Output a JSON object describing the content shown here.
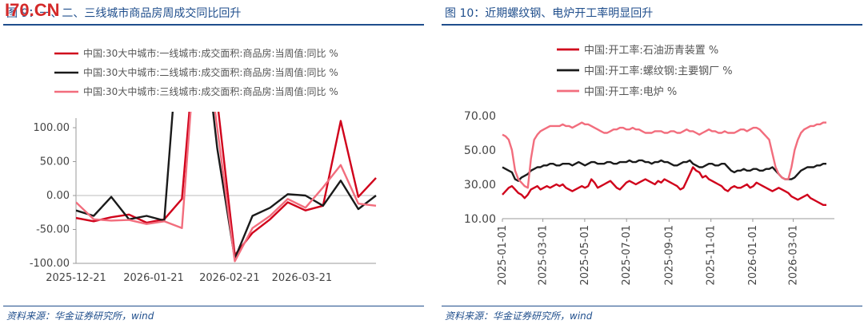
{
  "watermark": "I70.CN",
  "left": {
    "title": "图 9：一、二、三线城市商品房周成交同比回升",
    "source": "资料来源：华金证券研究所，wind",
    "chart_data": {
      "type": "line",
      "x": [
        "2025-12-21",
        "2025-12-28",
        "2026-01-04",
        "2026-01-11",
        "2026-01-18",
        "2026-01-25",
        "2026-02-01",
        "2026-02-08",
        "2026-02-15",
        "2026-02-22",
        "2026-03-01",
        "2026-03-08",
        "2026-03-15",
        "2026-03-22",
        "2026-03-29",
        "2026-04-05",
        "2026-04-12",
        "2026-04-19"
      ],
      "xticks": [
        "2025-12-21",
        "2026-01-21",
        "2026-02-21",
        "2026-03-21"
      ],
      "ylim": [
        -100,
        100
      ],
      "yticks": [
        "100.00",
        "50.00",
        "0.00",
        "-50.00",
        "-100.00"
      ],
      "ytick_values": [
        100,
        50,
        0,
        -50,
        -100
      ],
      "series": [
        {
          "name": "中国:30大中城市:一线城市:成交面积:商品房:当周值:同比 %",
          "color": "#d0021b",
          "values": [
            -33,
            -38,
            -32,
            -28,
            -40,
            -35,
            -5,
            300,
            140,
            -88,
            -55,
            -35,
            -10,
            -22,
            -15,
            110,
            -2,
            26
          ]
        },
        {
          "name": "中国:30大中城市:二线城市:成交面积:商品房:当周值:同比 %",
          "color": "#1a1a1a",
          "values": [
            -22,
            -30,
            -2,
            -35,
            -30,
            -37,
            300,
            300,
            70,
            -93,
            -30,
            -18,
            2,
            0,
            -15,
            22,
            -20,
            0
          ]
        },
        {
          "name": "中国:30大中城市:三线城市:成交面积:商品房:当周值:同比 %",
          "color": "#f26d7d",
          "values": [
            -10,
            -35,
            -37,
            -36,
            -42,
            -38,
            -48,
            300,
            100,
            -97,
            -48,
            -30,
            -5,
            -18,
            12,
            45,
            -12,
            -15
          ]
        }
      ]
    }
  },
  "right": {
    "title": "图 10：近期螺纹钢、电炉开工率明显回升",
    "source": "资料来源：华金证券研究所，wind",
    "chart_data": {
      "type": "line",
      "x_start": "2025-01-01",
      "x_end": "2026-04-30",
      "xticks": [
        "2025-01-01",
        "2025-03-01",
        "2025-05-01",
        "2025-07-01",
        "2025-09-01",
        "2025-11-01",
        "2026-01-01",
        "2026-03-01"
      ],
      "ylim": [
        10,
        70
      ],
      "yticks": [
        "70.00",
        "50.00",
        "30.00",
        "10.00"
      ],
      "ytick_values": [
        70,
        50,
        30,
        10
      ],
      "series": [
        {
          "name": "中国:开工率:石油沥青装置 %",
          "color": "#d0021b",
          "values": [
            24,
            26,
            28,
            29,
            27,
            25,
            24,
            22,
            24,
            27,
            28,
            29,
            27,
            28,
            29,
            28,
            29,
            30,
            29,
            30,
            28,
            27,
            26,
            27,
            28,
            29,
            28,
            29,
            33,
            31,
            28,
            29,
            30,
            31,
            32,
            30,
            28,
            27,
            29,
            31,
            32,
            31,
            30,
            31,
            32,
            33,
            32,
            31,
            30,
            32,
            31,
            33,
            32,
            31,
            30,
            29,
            27,
            28,
            32,
            36,
            40,
            38,
            37,
            34,
            35,
            33,
            32,
            31,
            30,
            29,
            27,
            26,
            28,
            29,
            28,
            28,
            29,
            30,
            28,
            29,
            31,
            30,
            29,
            28,
            27,
            26,
            27,
            28,
            27,
            26,
            25,
            23,
            22,
            21,
            22,
            23,
            24,
            22,
            21,
            20,
            19,
            18,
            18
          ]
        },
        {
          "name": "中国:开工率:螺纹钢:主要钢厂 %",
          "color": "#1a1a1a",
          "values": [
            40,
            39,
            38,
            37,
            33,
            32,
            34,
            35,
            36,
            38,
            39,
            40,
            40,
            41,
            41,
            42,
            42,
            41,
            41,
            42,
            42,
            42,
            41,
            42,
            43,
            42,
            41,
            42,
            43,
            43,
            42,
            42,
            42,
            43,
            43,
            42,
            42,
            43,
            43,
            43,
            44,
            43,
            43,
            44,
            44,
            43,
            43,
            42,
            43,
            43,
            44,
            43,
            43,
            42,
            41,
            41,
            42,
            43,
            43,
            44,
            42,
            41,
            40,
            40,
            41,
            42,
            42,
            41,
            41,
            42,
            42,
            40,
            38,
            37,
            38,
            38,
            39,
            38,
            38,
            39,
            39,
            38,
            38,
            39,
            39,
            40,
            38,
            36,
            34,
            33,
            33,
            33,
            34,
            36,
            38,
            39,
            40,
            40,
            40,
            41,
            41,
            42,
            42
          ]
        },
        {
          "name": "中国:开工率:电炉 %",
          "color": "#f26d7d",
          "values": [
            59,
            58,
            56,
            50,
            38,
            33,
            31,
            29,
            28,
            45,
            56,
            59,
            61,
            62,
            63,
            64,
            64,
            64,
            64,
            65,
            64,
            64,
            63,
            64,
            65,
            66,
            65,
            65,
            64,
            63,
            62,
            61,
            60,
            60,
            61,
            62,
            62,
            63,
            63,
            62,
            62,
            63,
            62,
            62,
            61,
            60,
            60,
            60,
            61,
            61,
            61,
            60,
            60,
            61,
            61,
            60,
            60,
            61,
            62,
            61,
            61,
            60,
            59,
            60,
            61,
            62,
            61,
            61,
            60,
            60,
            61,
            60,
            60,
            60,
            61,
            62,
            62,
            61,
            62,
            63,
            63,
            62,
            60,
            58,
            56,
            48,
            40,
            36,
            34,
            33,
            33,
            40,
            50,
            56,
            60,
            62,
            63,
            64,
            64,
            65,
            65,
            66,
            66
          ]
        }
      ]
    }
  }
}
